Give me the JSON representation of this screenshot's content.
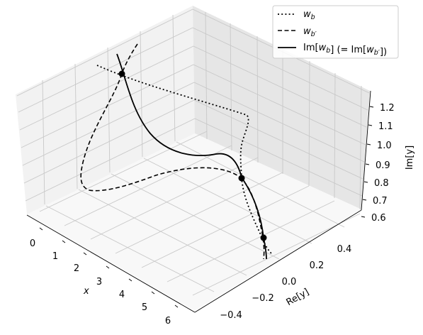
{
  "chart_data": {
    "type": "line",
    "projection": "3d",
    "axes": {
      "x": {
        "label": "x",
        "ticks": [
          "0",
          "1",
          "2",
          "3",
          "4",
          "5",
          "6"
        ],
        "lim": [
          -0.3,
          6.3
        ]
      },
      "y": {
        "label": "Re[y]",
        "ticks": [
          "−0.4",
          "−0.2",
          "0.0",
          "0.2",
          "0.4"
        ],
        "lim": [
          -0.5,
          0.55
        ]
      },
      "z": {
        "label": "Im[y]",
        "ticks": [
          "0.6",
          "0.7",
          "0.8",
          "0.9",
          "1.0",
          "1.1",
          "1.2"
        ],
        "lim": [
          0.6,
          1.25
        ]
      }
    },
    "grid": true,
    "legend": {
      "placement": "top-right",
      "entries": [
        {
          "label": "w_b",
          "style": "dotted"
        },
        {
          "label": "w_b′",
          "style": "dashed"
        },
        {
          "label": "Im[w_b] (= Im[w_b′])",
          "style": "solid"
        }
      ]
    },
    "series": [
      {
        "name": "w_b",
        "style": "dotted",
        "color": "#000000"
      },
      {
        "name": "w_b′",
        "style": "dashed",
        "color": "#000000"
      },
      {
        "name": "Im[w_b] (= Im[w_b′])",
        "style": "solid",
        "color": "#000000"
      }
    ],
    "intersection_points": 3
  }
}
